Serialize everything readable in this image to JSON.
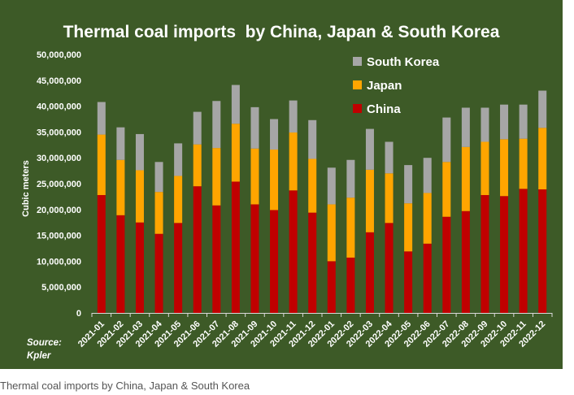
{
  "chart_data": {
    "type": "bar",
    "stacked": true,
    "title": "Thermal coal imports  by China, Japan & South Korea",
    "xlabel": "",
    "ylabel": "Cubic meters",
    "ylim": [
      0,
      50000000
    ],
    "yticks": [
      0,
      5000000,
      10000000,
      15000000,
      20000000,
      25000000,
      30000000,
      35000000,
      40000000,
      45000000,
      50000000
    ],
    "ytick_labels": [
      "0",
      "5,000,000",
      "10,000,000",
      "15,000,000",
      "20,000,000",
      "25,000,000",
      "30,000,000",
      "35,000,000",
      "40,000,000",
      "45,000,000",
      "50,000,000"
    ],
    "grid": false,
    "legend_position": "top-right",
    "categories": [
      "2021-01",
      "2021-02",
      "2021-03",
      "2021-04",
      "2021-05",
      "2021-06",
      "2021-07",
      "2021-08",
      "2021-09",
      "2021-10",
      "2021-11",
      "2021-12",
      "2022-01",
      "2022-02",
      "2022-03",
      "2022-04",
      "2022-05",
      "2022-06",
      "2022-07",
      "2022-08",
      "2022-09",
      "2022-10",
      "2022-11",
      "2022-12"
    ],
    "series": [
      {
        "name": "China",
        "color": "#c00000",
        "values": [
          22800000,
          18900000,
          17500000,
          15300000,
          17400000,
          24500000,
          20800000,
          25400000,
          21000000,
          19900000,
          23700000,
          19400000,
          10000000,
          10700000,
          15600000,
          17400000,
          11900000,
          13400000,
          18600000,
          19700000,
          22800000,
          22600000,
          24000000,
          23900000
        ]
      },
      {
        "name": "Japan",
        "color": "#ffa500",
        "values": [
          11700000,
          10700000,
          10100000,
          8100000,
          9100000,
          8100000,
          11100000,
          11200000,
          10800000,
          11700000,
          11200000,
          10400000,
          11000000,
          11600000,
          12100000,
          9600000,
          9300000,
          9800000,
          10600000,
          12400000,
          10300000,
          11000000,
          9700000,
          11900000
        ]
      },
      {
        "name": "South Korea",
        "color": "#a6a6a6",
        "values": [
          6300000,
          6300000,
          7000000,
          5800000,
          6300000,
          6300000,
          9100000,
          7500000,
          8000000,
          5900000,
          6200000,
          7500000,
          7100000,
          7300000,
          7900000,
          6100000,
          7400000,
          6800000,
          8600000,
          7600000,
          6600000,
          6700000,
          6600000,
          7200000
        ]
      }
    ],
    "legend_order": [
      "South Korea",
      "Japan",
      "China"
    ],
    "source_lines": [
      "Source:",
      "Kpler"
    ]
  },
  "caption": "Thermal coal imports by China, Japan & South Korea",
  "colors": {
    "panel_background": "#3d5a27",
    "text": "#ffffff",
    "axis": "#d9d9d9"
  }
}
